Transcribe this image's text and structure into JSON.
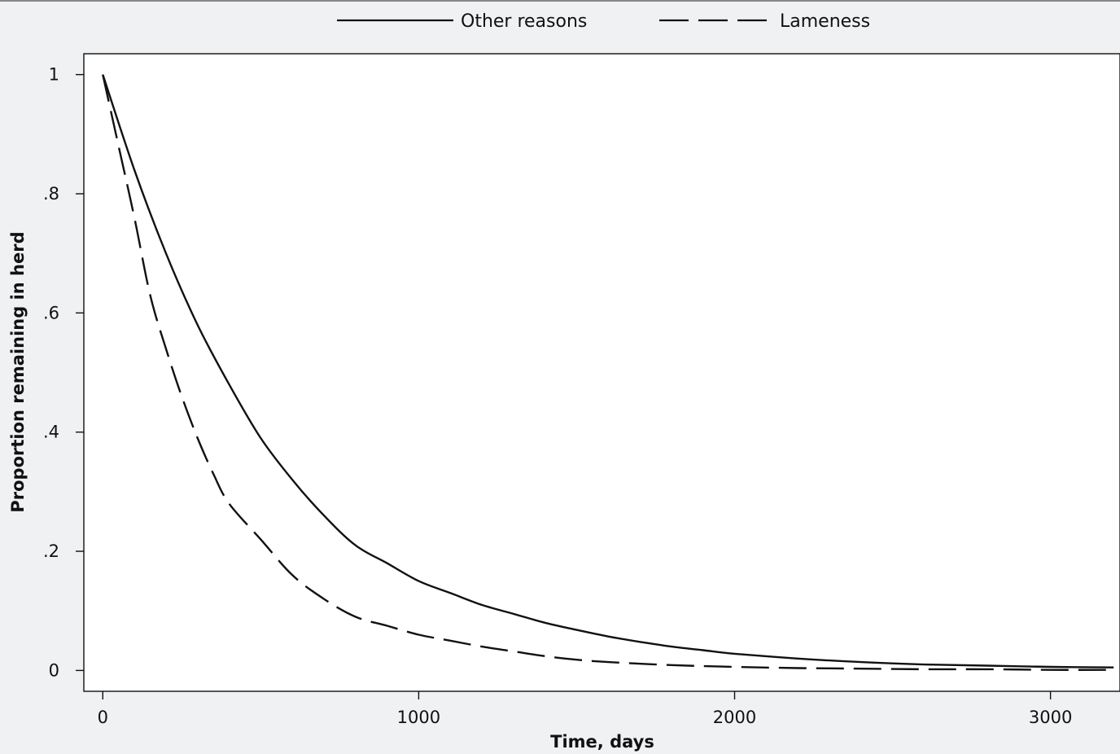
{
  "chart_data": {
    "type": "line",
    "title": "",
    "xlabel": "Time, days",
    "ylabel": "Proportion remaining in herd",
    "xlim": [
      -60,
      3220
    ],
    "ylim": [
      -0.035,
      1.035
    ],
    "xticks": [
      0,
      1000,
      2000,
      3000
    ],
    "xtick_labels": [
      "0",
      "1000",
      "2000",
      "3000"
    ],
    "yticks": [
      0,
      0.2,
      0.4,
      0.6,
      0.8,
      1
    ],
    "ytick_labels": [
      "0",
      ".2",
      ".4",
      ".6",
      ".8",
      "1"
    ],
    "grid": false,
    "legend_position": "top-center",
    "series": [
      {
        "name": "Other reasons",
        "style": "solid",
        "color": "#111111",
        "x": [
          0,
          100,
          200,
          300,
          400,
          500,
          600,
          700,
          800,
          900,
          1000,
          1100,
          1200,
          1300,
          1400,
          1500,
          1600,
          1700,
          1800,
          1900,
          2000,
          2200,
          2400,
          2600,
          2800,
          3000,
          3200
        ],
        "y": [
          1.0,
          0.84,
          0.7,
          0.58,
          0.48,
          0.39,
          0.32,
          0.26,
          0.21,
          0.18,
          0.15,
          0.13,
          0.11,
          0.095,
          0.08,
          0.068,
          0.057,
          0.048,
          0.04,
          0.034,
          0.028,
          0.02,
          0.014,
          0.01,
          0.008,
          0.006,
          0.005
        ]
      },
      {
        "name": "Lameness",
        "style": "dashed",
        "color": "#111111",
        "x": [
          0,
          50,
          100,
          150,
          200,
          250,
          300,
          350,
          400,
          500,
          600,
          700,
          800,
          900,
          1000,
          1100,
          1200,
          1300,
          1400,
          1500,
          1600,
          1800,
          2000,
          2200,
          2400,
          2600,
          2800,
          3000,
          3200
        ],
        "y": [
          1.0,
          0.88,
          0.76,
          0.63,
          0.54,
          0.46,
          0.39,
          0.33,
          0.28,
          0.22,
          0.16,
          0.12,
          0.09,
          0.075,
          0.06,
          0.05,
          0.04,
          0.032,
          0.024,
          0.018,
          0.014,
          0.009,
          0.006,
          0.004,
          0.003,
          0.002,
          0.002,
          0.001,
          0.001
        ]
      }
    ]
  }
}
